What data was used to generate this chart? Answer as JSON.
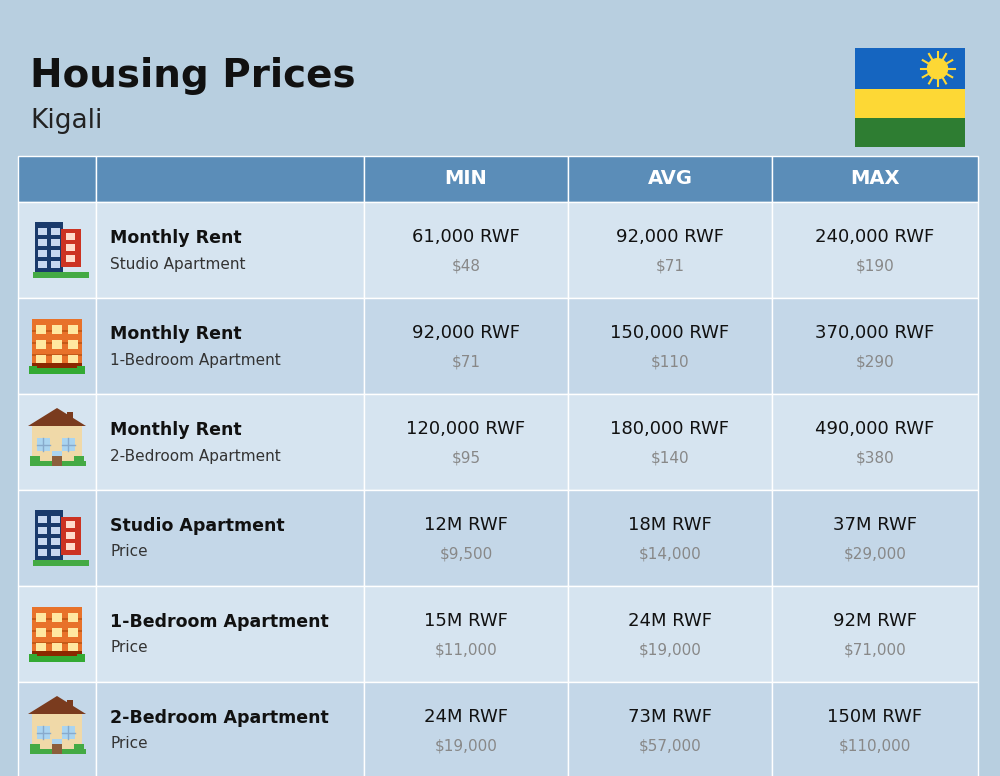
{
  "title": "Housing Prices",
  "subtitle": "Kigali",
  "background_color": "#b8cfe0",
  "header_bg_color": "#5b8db8",
  "header_text_color": "#ffffff",
  "row_bg_even": "#d6e4f0",
  "row_bg_odd": "#c4d7e8",
  "col_headers": [
    "MIN",
    "AVG",
    "MAX"
  ],
  "rows": [
    {
      "icon_type": "blue_studio",
      "bold_text": "Monthly Rent",
      "sub_text": "Studio Apartment",
      "min_rwf": "61,000 RWF",
      "min_usd": "$48",
      "avg_rwf": "92,000 RWF",
      "avg_usd": "$71",
      "max_rwf": "240,000 RWF",
      "max_usd": "$190"
    },
    {
      "icon_type": "orange_apartment",
      "bold_text": "Monthly Rent",
      "sub_text": "1-Bedroom Apartment",
      "min_rwf": "92,000 RWF",
      "min_usd": "$71",
      "avg_rwf": "150,000 RWF",
      "avg_usd": "$110",
      "max_rwf": "370,000 RWF",
      "max_usd": "$290"
    },
    {
      "icon_type": "beige_house",
      "bold_text": "Monthly Rent",
      "sub_text": "2-Bedroom Apartment",
      "min_rwf": "120,000 RWF",
      "min_usd": "$95",
      "avg_rwf": "180,000 RWF",
      "avg_usd": "$140",
      "max_rwf": "490,000 RWF",
      "max_usd": "$380"
    },
    {
      "icon_type": "blue_studio",
      "bold_text": "Studio Apartment",
      "sub_text": "Price",
      "min_rwf": "12M RWF",
      "min_usd": "$9,500",
      "avg_rwf": "18M RWF",
      "avg_usd": "$14,000",
      "max_rwf": "37M RWF",
      "max_usd": "$29,000"
    },
    {
      "icon_type": "orange_apartment",
      "bold_text": "1-Bedroom Apartment",
      "sub_text": "Price",
      "min_rwf": "15M RWF",
      "min_usd": "$11,000",
      "avg_rwf": "24M RWF",
      "avg_usd": "$19,000",
      "max_rwf": "92M RWF",
      "max_usd": "$71,000"
    },
    {
      "icon_type": "beige_house",
      "bold_text": "2-Bedroom Apartment",
      "sub_text": "Price",
      "min_rwf": "24M RWF",
      "min_usd": "$19,000",
      "avg_rwf": "73M RWF",
      "avg_usd": "$57,000",
      "max_rwf": "150M RWF",
      "max_usd": "$110,000"
    }
  ],
  "flag_colors": {
    "blue": "#1565c0",
    "yellow": "#fdd835",
    "green": "#2e7d32"
  }
}
